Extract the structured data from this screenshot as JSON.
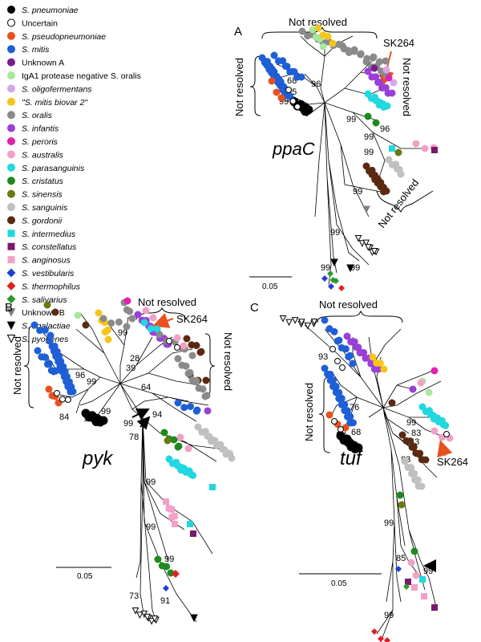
{
  "legend": [
    {
      "label": "S. pneumoniae",
      "italic": true,
      "shape": "circle",
      "color": "#000000"
    },
    {
      "label": "Uncertain",
      "italic": false,
      "shape": "circle-open",
      "color": "#ffffff"
    },
    {
      "label": "S. pseudopneumoniae",
      "italic": true,
      "shape": "circle",
      "color": "#e8501e"
    },
    {
      "label": "S. mitis",
      "italic": true,
      "shape": "circle",
      "color": "#1f5fd6"
    },
    {
      "label": "Unknown A",
      "italic": false,
      "shape": "circle",
      "color": "#7a1a8a"
    },
    {
      "label": "IgA1 protease negative S. oralis",
      "italic": false,
      "shape": "circle",
      "color": "#a8e89a"
    },
    {
      "label": "S. oligofermentans",
      "italic": true,
      "shape": "circle",
      "color": "#d4a8e8"
    },
    {
      "label": "\"S. mitis biovar 2\"",
      "italic": true,
      "shape": "circle",
      "color": "#f5c518"
    },
    {
      "label": "S. oralis",
      "italic": true,
      "shape": "circle",
      "color": "#8a8a8a"
    },
    {
      "label": "S. infantis",
      "italic": true,
      "shape": "circle",
      "color": "#9a3fd8"
    },
    {
      "label": "S. peroris",
      "italic": true,
      "shape": "circle",
      "color": "#e020b0"
    },
    {
      "label": "S. australis",
      "italic": true,
      "shape": "circle",
      "color": "#f2a0c8"
    },
    {
      "label": "S. parasanguinis",
      "italic": true,
      "shape": "circle",
      "color": "#20d8e0"
    },
    {
      "label": "S. cristatus",
      "italic": true,
      "shape": "circle",
      "color": "#1e8a1e"
    },
    {
      "label": "S. sinensis",
      "italic": true,
      "shape": "circle",
      "color": "#6a7a10"
    },
    {
      "label": "S. sanguinis",
      "italic": true,
      "shape": "circle",
      "color": "#c0c0c0"
    },
    {
      "label": "S. gordonii",
      "italic": true,
      "shape": "circle",
      "color": "#5a2a10"
    },
    {
      "label": "S. intermedius",
      "italic": true,
      "shape": "square",
      "color": "#20d8e0"
    },
    {
      "label": "S. constellatus",
      "italic": true,
      "shape": "square",
      "color": "#7a1a6a"
    },
    {
      "label": "S. anginosus",
      "italic": true,
      "shape": "square",
      "color": "#f2a0c8"
    },
    {
      "label": "S. vestibularis",
      "italic": true,
      "shape": "diamond",
      "color": "#1f3fd6"
    },
    {
      "label": "S. thermophilus",
      "italic": true,
      "shape": "diamond",
      "color": "#e02020"
    },
    {
      "label": "S. salivarius",
      "italic": true,
      "shape": "diamond",
      "color": "#2a9a2a"
    },
    {
      "label": "Unknown B",
      "italic": false,
      "shape": "triangle-down",
      "color": "#808080"
    },
    {
      "label": "S. agalactiae",
      "italic": true,
      "shape": "triangle-down",
      "color": "#000000"
    },
    {
      "label": "S. pyogenes",
      "italic": true,
      "shape": "triangle-down-open",
      "color": "#ffffff"
    }
  ],
  "panels": {
    "A": {
      "letter": "A",
      "gene": "ppaC",
      "marker": "SK264",
      "scale": "0.05",
      "not_resolved": [
        "Not resolved",
        "Not resolved",
        "Not resolved",
        "Not resolved"
      ],
      "bootstrap": [
        "68",
        "96",
        "95",
        "99",
        "99",
        "96",
        "99",
        "99",
        "99",
        "99",
        "99",
        "99"
      ]
    },
    "B": {
      "letter": "B",
      "gene": "pyk",
      "marker": "SK264",
      "scale": "0.05",
      "not_resolved": [
        "Not resolved",
        "Not resolved",
        "Not resolved"
      ],
      "bootstrap": [
        "99",
        "99",
        "96",
        "28",
        "39",
        "64",
        "84",
        "99",
        "99",
        "94",
        "78",
        "99",
        "99",
        "73",
        "91",
        "99"
      ]
    },
    "C": {
      "letter": "C",
      "gene": "tuf",
      "marker": "SK264",
      "scale": "0.05",
      "not_resolved": [
        "Not resolved",
        "Not resolved"
      ],
      "bootstrap": [
        "93",
        "76",
        "68",
        "99",
        "43",
        "83",
        "83",
        "99",
        "85",
        "99",
        "99"
      ]
    }
  }
}
